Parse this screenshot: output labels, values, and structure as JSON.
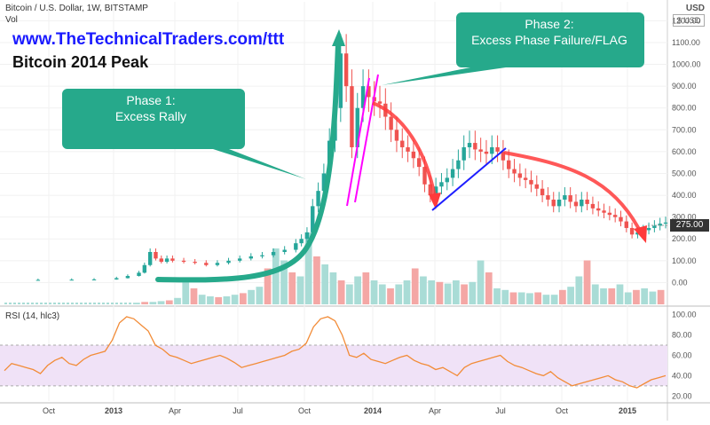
{
  "header": {
    "symbol_line": "Bitcoin / U.S. Dollar, 1W, BITSTAMP",
    "vol_label": "Vol",
    "currency": "USD",
    "currency_box": "$ USD",
    "rsi_label": "RSI (14, hlc3)"
  },
  "annotations": {
    "url": "www.TheTechnicalTraders.com/ttt",
    "title": "Bitcoin 2014 Peak",
    "phase1": [
      "Phase 1:",
      "Excess Rally"
    ],
    "phase2": [
      "Phase 2:",
      "Excess Phase Failure/FLAG"
    ],
    "last_price": "275.00"
  },
  "colors": {
    "up": "#26a69a",
    "down": "#ef5350",
    "callout": "#26a98b",
    "red_arrow": "#ff3b3b",
    "blue_line": "#1e1eff",
    "magenta": "#ff00ff",
    "rsi_line": "#f28c38",
    "rsi_band": "#f0e2f7"
  },
  "chart_data": [
    {
      "type": "candlestick",
      "title": "Bitcoin / U.S. Dollar, 1W, BITSTAMP",
      "x_axis_ticks": [
        "Oct",
        "2013",
        "Apr",
        "Jul",
        "Oct",
        "2014",
        "Apr",
        "Jul",
        "Oct",
        "2015"
      ],
      "y_ticks": [
        0,
        100,
        200,
        300,
        400,
        500,
        600,
        700,
        800,
        900,
        1000,
        1100,
        1200
      ],
      "y_tick_labels": [
        "0.00",
        "100.00",
        "200.00",
        "300.00",
        "400.00",
        "500.00",
        "600.00",
        "700.00",
        "800.00",
        "900.00",
        "1000.00",
        "1100.00",
        "1200.00"
      ],
      "ylim": [
        -100,
        1230
      ],
      "last_price": 275,
      "series_approx_close": [
        [
          0,
          12
        ],
        [
          6,
          12
        ],
        [
          12,
          13
        ],
        [
          16,
          14
        ],
        [
          20,
          20
        ],
        [
          22,
          30
        ],
        [
          24,
          45
        ],
        [
          25,
          80
        ],
        [
          26,
          140
        ],
        [
          27,
          110
        ],
        [
          28,
          95
        ],
        [
          29,
          110
        ],
        [
          30,
          100
        ],
        [
          32,
          95
        ],
        [
          34,
          90
        ],
        [
          36,
          80
        ],
        [
          38,
          90
        ],
        [
          40,
          100
        ],
        [
          42,
          110
        ],
        [
          44,
          120
        ],
        [
          46,
          125
        ],
        [
          48,
          140
        ],
        [
          50,
          150
        ],
        [
          52,
          180
        ],
        [
          53,
          200
        ],
        [
          54,
          230
        ],
        [
          55,
          350
        ],
        [
          56,
          420
        ],
        [
          57,
          500
        ],
        [
          58,
          650
        ],
        [
          59,
          800
        ],
        [
          60,
          1050
        ],
        [
          61,
          900
        ],
        [
          62,
          620
        ],
        [
          63,
          800
        ],
        [
          64,
          900
        ],
        [
          65,
          850
        ],
        [
          66,
          830
        ],
        [
          67,
          820
        ],
        [
          68,
          760
        ],
        [
          69,
          700
        ],
        [
          70,
          650
        ],
        [
          71,
          620
        ],
        [
          72,
          600
        ],
        [
          73,
          570
        ],
        [
          74,
          530
        ],
        [
          75,
          450
        ],
        [
          76,
          400
        ],
        [
          77,
          440
        ],
        [
          78,
          460
        ],
        [
          79,
          480
        ],
        [
          80,
          520
        ],
        [
          81,
          560
        ],
        [
          82,
          620
        ],
        [
          83,
          640
        ],
        [
          84,
          610
        ],
        [
          85,
          600
        ],
        [
          86,
          590
        ],
        [
          87,
          620
        ],
        [
          88,
          600
        ],
        [
          89,
          560
        ],
        [
          90,
          520
        ],
        [
          91,
          500
        ],
        [
          92,
          480
        ],
        [
          93,
          470
        ],
        [
          94,
          450
        ],
        [
          95,
          430
        ],
        [
          96,
          400
        ],
        [
          97,
          380
        ],
        [
          98,
          350
        ],
        [
          99,
          380
        ],
        [
          100,
          400
        ],
        [
          101,
          370
        ],
        [
          102,
          350
        ],
        [
          103,
          380
        ],
        [
          104,
          360
        ],
        [
          105,
          340
        ],
        [
          106,
          330
        ],
        [
          107,
          320
        ],
        [
          108,
          310
        ],
        [
          109,
          300
        ],
        [
          110,
          280
        ],
        [
          111,
          250
        ],
        [
          112,
          220
        ],
        [
          113,
          230
        ],
        [
          114,
          240
        ],
        [
          115,
          250
        ],
        [
          116,
          260
        ],
        [
          117,
          270
        ],
        [
          118,
          275
        ]
      ]
    },
    {
      "type": "bar",
      "title": "Vol",
      "values_relative": [
        2,
        3,
        3,
        4,
        5,
        8,
        30,
        20,
        12,
        10,
        9,
        10,
        12,
        14,
        18,
        22,
        45,
        70,
        55,
        40,
        35,
        90,
        60,
        50,
        40,
        30,
        25,
        35,
        40,
        30,
        25,
        20,
        25,
        30,
        45,
        35,
        30,
        28,
        26,
        30,
        25,
        28,
        55,
        40,
        20,
        18,
        15,
        15,
        14,
        15,
        12,
        12,
        18,
        22,
        35,
        55,
        25,
        20,
        20,
        25,
        15,
        18,
        20,
        16,
        18
      ]
    },
    {
      "type": "line",
      "title": "RSI (14, hlc3)",
      "y_tick_labels": [
        "20.00",
        "40.00",
        "60.00",
        "80.00",
        "100.00"
      ],
      "y_ticks": [
        20,
        40,
        60,
        80,
        100
      ],
      "ylim": [
        15,
        105
      ],
      "band": [
        30,
        70
      ],
      "values": [
        45,
        52,
        50,
        48,
        46,
        42,
        50,
        55,
        58,
        52,
        50,
        56,
        60,
        62,
        64,
        75,
        92,
        98,
        96,
        90,
        84,
        70,
        66,
        60,
        58,
        55,
        52,
        54,
        56,
        58,
        60,
        57,
        53,
        48,
        50,
        52,
        54,
        56,
        58,
        60,
        64,
        66,
        72,
        88,
        96,
        98,
        94,
        80,
        60,
        58,
        62,
        56,
        54,
        52,
        55,
        58,
        60,
        55,
        52,
        50,
        46,
        48,
        44,
        40,
        48,
        52,
        54,
        56,
        58,
        60,
        54,
        50,
        48,
        45,
        42,
        40,
        44,
        38,
        34,
        30,
        32,
        34,
        36,
        38,
        40,
        36,
        34,
        30,
        28,
        32,
        36,
        38,
        40
      ]
    }
  ]
}
